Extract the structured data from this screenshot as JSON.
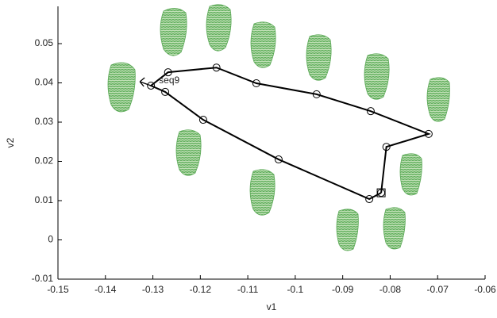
{
  "chart_data": {
    "type": "line",
    "x_label": "v1",
    "y_label": "v2",
    "xlim": [
      -0.15,
      -0.06
    ],
    "ylim": [
      -0.01,
      0.0595
    ],
    "xticks": [
      -0.15,
      -0.14,
      -0.13,
      -0.12,
      -0.11,
      -0.1,
      -0.09,
      -0.08,
      -0.07,
      -0.06
    ],
    "yticks": [
      -0.01,
      0,
      0.01,
      0.02,
      0.03,
      0.04,
      0.05
    ],
    "series": [
      {
        "name": "seq9",
        "color": "#000000",
        "x": [
          -0.0819,
          -0.0808,
          -0.0719,
          -0.0841,
          -0.0955,
          -0.1082,
          -0.1166,
          -0.1268,
          -0.1304,
          -0.1274,
          -0.1194,
          -0.1035,
          -0.0844,
          -0.0819
        ],
        "values": [
          0.012,
          0.0237,
          0.027,
          0.0328,
          0.0371,
          0.0399,
          0.0439,
          0.0427,
          0.0393,
          0.0377,
          0.0306,
          0.0205,
          0.0104,
          0.012
        ]
      }
    ]
  }
}
